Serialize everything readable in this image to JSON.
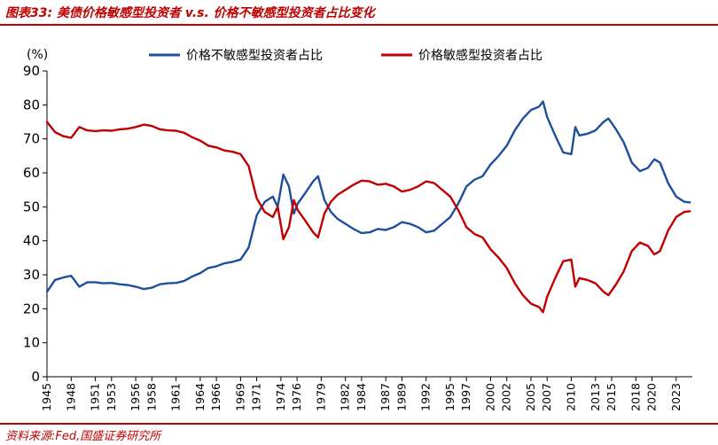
{
  "figure": {
    "title": "图表33:  美债价格敏感型投资者 v.s. 价格不敏感型投资者占比变化",
    "source": "资料来源:Fed,国盛证券研究所"
  },
  "colors": {
    "blue": "#1f4e9c",
    "red": "#c00000",
    "axis": "#000000"
  },
  "chart_data": {
    "type": "line",
    "ylabel": "(%)",
    "ylim": [
      0,
      90
    ],
    "yticks": [
      0,
      10,
      20,
      30,
      40,
      50,
      60,
      70,
      80,
      90
    ],
    "xlim": [
      1945,
      2025
    ],
    "xticks": [
      1945,
      1948,
      1951,
      1953,
      1956,
      1958,
      1961,
      1964,
      1966,
      1969,
      1971,
      1974,
      1976,
      1979,
      1982,
      1984,
      1987,
      1989,
      1992,
      1995,
      1997,
      2000,
      2002,
      2005,
      2007,
      2010,
      2013,
      2015,
      2018,
      2020,
      2023
    ],
    "legend_position": "top",
    "series": [
      {
        "name": "价格不敏感型投资者占比",
        "color": "#1f4e9c",
        "points": [
          [
            1945.0,
            25.0
          ],
          [
            1946.0,
            28.5
          ],
          [
            1947.0,
            29.2
          ],
          [
            1948.0,
            29.7
          ],
          [
            1949.0,
            26.5
          ],
          [
            1950.0,
            27.8
          ],
          [
            1951.0,
            27.8
          ],
          [
            1952.0,
            27.5
          ],
          [
            1953.0,
            27.6
          ],
          [
            1954.0,
            27.2
          ],
          [
            1955.0,
            27.0
          ],
          [
            1956.0,
            26.5
          ],
          [
            1957.0,
            25.8
          ],
          [
            1958.0,
            26.2
          ],
          [
            1959.0,
            27.2
          ],
          [
            1960.0,
            27.5
          ],
          [
            1961.0,
            27.6
          ],
          [
            1962.0,
            28.2
          ],
          [
            1963.0,
            29.5
          ],
          [
            1964.0,
            30.5
          ],
          [
            1965.0,
            32.0
          ],
          [
            1966.0,
            32.5
          ],
          [
            1967.0,
            33.4
          ],
          [
            1968.0,
            33.8
          ],
          [
            1969.0,
            34.5
          ],
          [
            1970.0,
            38.0
          ],
          [
            1971.0,
            47.5
          ],
          [
            1972.0,
            51.5
          ],
          [
            1973.0,
            53.0
          ],
          [
            1973.6,
            50.0
          ],
          [
            1974.3,
            59.5
          ],
          [
            1975.0,
            56.0
          ],
          [
            1975.6,
            48.0
          ],
          [
            1976.1,
            51.0
          ],
          [
            1977.0,
            54.0
          ],
          [
            1978.0,
            57.5
          ],
          [
            1978.6,
            59.0
          ],
          [
            1979.4,
            52.0
          ],
          [
            1980.2,
            48.5
          ],
          [
            1981.0,
            46.5
          ],
          [
            1982.0,
            45.0
          ],
          [
            1983.0,
            43.5
          ],
          [
            1984.0,
            42.3
          ],
          [
            1985.0,
            42.5
          ],
          [
            1986.0,
            43.5
          ],
          [
            1987.0,
            43.2
          ],
          [
            1988.0,
            44.0
          ],
          [
            1989.0,
            45.5
          ],
          [
            1990.0,
            45.0
          ],
          [
            1991.0,
            44.0
          ],
          [
            1992.0,
            42.5
          ],
          [
            1993.0,
            43.0
          ],
          [
            1994.0,
            45.0
          ],
          [
            1995.0,
            47.0
          ],
          [
            1996.0,
            51.0
          ],
          [
            1997.0,
            56.0
          ],
          [
            1998.0,
            58.0
          ],
          [
            1999.0,
            59.0
          ],
          [
            2000.0,
            62.5
          ],
          [
            2001.0,
            65.0
          ],
          [
            2002.0,
            68.0
          ],
          [
            2003.0,
            72.5
          ],
          [
            2004.0,
            76.0
          ],
          [
            2005.0,
            78.5
          ],
          [
            2006.0,
            79.5
          ],
          [
            2006.5,
            81.0
          ],
          [
            2007.0,
            76.5
          ],
          [
            2008.0,
            71.0
          ],
          [
            2009.0,
            66.0
          ],
          [
            2010.0,
            65.5
          ],
          [
            2010.5,
            73.5
          ],
          [
            2011.0,
            71.0
          ],
          [
            2012.0,
            71.5
          ],
          [
            2013.0,
            72.5
          ],
          [
            2014.0,
            75.0
          ],
          [
            2014.6,
            76.0
          ],
          [
            2015.5,
            73.0
          ],
          [
            2016.5,
            69.0
          ],
          [
            2017.5,
            63.0
          ],
          [
            2018.5,
            60.5
          ],
          [
            2019.5,
            61.5
          ],
          [
            2020.3,
            64.0
          ],
          [
            2021.0,
            63.0
          ],
          [
            2022.0,
            57.0
          ],
          [
            2023.0,
            53.0
          ],
          [
            2024.0,
            51.5
          ],
          [
            2024.7,
            51.3
          ]
        ]
      },
      {
        "name": "价格敏感型投资者占比",
        "color": "#c00000",
        "points": [
          [
            1945.0,
            75.0
          ],
          [
            1946.0,
            72.0
          ],
          [
            1947.0,
            70.8
          ],
          [
            1948.0,
            70.3
          ],
          [
            1949.0,
            73.5
          ],
          [
            1950.0,
            72.5
          ],
          [
            1951.0,
            72.3
          ],
          [
            1952.0,
            72.5
          ],
          [
            1953.0,
            72.4
          ],
          [
            1954.0,
            72.8
          ],
          [
            1955.0,
            73.0
          ],
          [
            1956.0,
            73.5
          ],
          [
            1957.0,
            74.2
          ],
          [
            1958.0,
            73.8
          ],
          [
            1959.0,
            72.8
          ],
          [
            1960.0,
            72.5
          ],
          [
            1961.0,
            72.4
          ],
          [
            1962.0,
            71.8
          ],
          [
            1963.0,
            70.5
          ],
          [
            1964.0,
            69.5
          ],
          [
            1965.0,
            68.0
          ],
          [
            1966.0,
            67.5
          ],
          [
            1967.0,
            66.6
          ],
          [
            1968.0,
            66.2
          ],
          [
            1969.0,
            65.5
          ],
          [
            1970.0,
            62.0
          ],
          [
            1971.0,
            52.5
          ],
          [
            1972.0,
            48.5
          ],
          [
            1973.0,
            47.0
          ],
          [
            1973.6,
            50.0
          ],
          [
            1974.3,
            40.5
          ],
          [
            1975.0,
            44.0
          ],
          [
            1975.6,
            52.0
          ],
          [
            1976.1,
            49.0
          ],
          [
            1977.0,
            46.0
          ],
          [
            1978.0,
            42.5
          ],
          [
            1978.6,
            41.0
          ],
          [
            1979.4,
            48.0
          ],
          [
            1980.2,
            51.5
          ],
          [
            1981.0,
            53.5
          ],
          [
            1982.0,
            55.0
          ],
          [
            1983.0,
            56.5
          ],
          [
            1984.0,
            57.7
          ],
          [
            1985.0,
            57.5
          ],
          [
            1986.0,
            56.5
          ],
          [
            1987.0,
            56.8
          ],
          [
            1988.0,
            56.0
          ],
          [
            1989.0,
            54.5
          ],
          [
            1990.0,
            55.0
          ],
          [
            1991.0,
            56.0
          ],
          [
            1992.0,
            57.5
          ],
          [
            1993.0,
            57.0
          ],
          [
            1994.0,
            55.0
          ],
          [
            1995.0,
            53.0
          ],
          [
            1996.0,
            49.0
          ],
          [
            1997.0,
            44.0
          ],
          [
            1998.0,
            42.0
          ],
          [
            1999.0,
            41.0
          ],
          [
            2000.0,
            37.5
          ],
          [
            2001.0,
            35.0
          ],
          [
            2002.0,
            32.0
          ],
          [
            2003.0,
            27.5
          ],
          [
            2004.0,
            24.0
          ],
          [
            2005.0,
            21.5
          ],
          [
            2006.0,
            20.5
          ],
          [
            2006.5,
            19.0
          ],
          [
            2007.0,
            23.5
          ],
          [
            2008.0,
            29.0
          ],
          [
            2009.0,
            34.0
          ],
          [
            2010.0,
            34.5
          ],
          [
            2010.5,
            26.5
          ],
          [
            2011.0,
            29.0
          ],
          [
            2012.0,
            28.5
          ],
          [
            2013.0,
            27.5
          ],
          [
            2014.0,
            25.0
          ],
          [
            2014.6,
            24.0
          ],
          [
            2015.5,
            27.0
          ],
          [
            2016.5,
            31.0
          ],
          [
            2017.5,
            37.0
          ],
          [
            2018.5,
            39.5
          ],
          [
            2019.5,
            38.5
          ],
          [
            2020.3,
            36.0
          ],
          [
            2021.0,
            37.0
          ],
          [
            2022.0,
            43.0
          ],
          [
            2023.0,
            47.0
          ],
          [
            2024.0,
            48.5
          ],
          [
            2024.7,
            48.7
          ]
        ]
      }
    ]
  }
}
